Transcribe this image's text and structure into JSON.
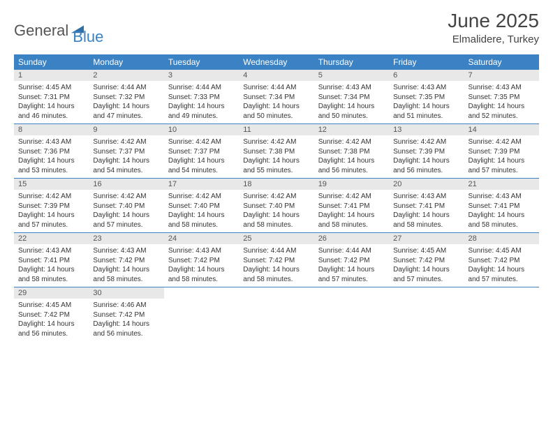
{
  "logo": {
    "text1": "General",
    "text2": "Blue",
    "icon_color": "#2f6fa8"
  },
  "title": "June 2025",
  "location": "Elmalidere, Turkey",
  "colors": {
    "header_bg": "#3b82c4",
    "header_text": "#ffffff",
    "daynum_bg": "#e8e8e8",
    "row_border": "#3b82c4",
    "text": "#333333"
  },
  "day_headers": [
    "Sunday",
    "Monday",
    "Tuesday",
    "Wednesday",
    "Thursday",
    "Friday",
    "Saturday"
  ],
  "weeks": [
    [
      {
        "n": "1",
        "sr": "4:45 AM",
        "ss": "7:31 PM",
        "dl": "14 hours and 46 minutes."
      },
      {
        "n": "2",
        "sr": "4:44 AM",
        "ss": "7:32 PM",
        "dl": "14 hours and 47 minutes."
      },
      {
        "n": "3",
        "sr": "4:44 AM",
        "ss": "7:33 PM",
        "dl": "14 hours and 49 minutes."
      },
      {
        "n": "4",
        "sr": "4:44 AM",
        "ss": "7:34 PM",
        "dl": "14 hours and 50 minutes."
      },
      {
        "n": "5",
        "sr": "4:43 AM",
        "ss": "7:34 PM",
        "dl": "14 hours and 50 minutes."
      },
      {
        "n": "6",
        "sr": "4:43 AM",
        "ss": "7:35 PM",
        "dl": "14 hours and 51 minutes."
      },
      {
        "n": "7",
        "sr": "4:43 AM",
        "ss": "7:35 PM",
        "dl": "14 hours and 52 minutes."
      }
    ],
    [
      {
        "n": "8",
        "sr": "4:43 AM",
        "ss": "7:36 PM",
        "dl": "14 hours and 53 minutes."
      },
      {
        "n": "9",
        "sr": "4:42 AM",
        "ss": "7:37 PM",
        "dl": "14 hours and 54 minutes."
      },
      {
        "n": "10",
        "sr": "4:42 AM",
        "ss": "7:37 PM",
        "dl": "14 hours and 54 minutes."
      },
      {
        "n": "11",
        "sr": "4:42 AM",
        "ss": "7:38 PM",
        "dl": "14 hours and 55 minutes."
      },
      {
        "n": "12",
        "sr": "4:42 AM",
        "ss": "7:38 PM",
        "dl": "14 hours and 56 minutes."
      },
      {
        "n": "13",
        "sr": "4:42 AM",
        "ss": "7:39 PM",
        "dl": "14 hours and 56 minutes."
      },
      {
        "n": "14",
        "sr": "4:42 AM",
        "ss": "7:39 PM",
        "dl": "14 hours and 57 minutes."
      }
    ],
    [
      {
        "n": "15",
        "sr": "4:42 AM",
        "ss": "7:39 PM",
        "dl": "14 hours and 57 minutes."
      },
      {
        "n": "16",
        "sr": "4:42 AM",
        "ss": "7:40 PM",
        "dl": "14 hours and 57 minutes."
      },
      {
        "n": "17",
        "sr": "4:42 AM",
        "ss": "7:40 PM",
        "dl": "14 hours and 58 minutes."
      },
      {
        "n": "18",
        "sr": "4:42 AM",
        "ss": "7:40 PM",
        "dl": "14 hours and 58 minutes."
      },
      {
        "n": "19",
        "sr": "4:42 AM",
        "ss": "7:41 PM",
        "dl": "14 hours and 58 minutes."
      },
      {
        "n": "20",
        "sr": "4:43 AM",
        "ss": "7:41 PM",
        "dl": "14 hours and 58 minutes."
      },
      {
        "n": "21",
        "sr": "4:43 AM",
        "ss": "7:41 PM",
        "dl": "14 hours and 58 minutes."
      }
    ],
    [
      {
        "n": "22",
        "sr": "4:43 AM",
        "ss": "7:41 PM",
        "dl": "14 hours and 58 minutes."
      },
      {
        "n": "23",
        "sr": "4:43 AM",
        "ss": "7:42 PM",
        "dl": "14 hours and 58 minutes."
      },
      {
        "n": "24",
        "sr": "4:43 AM",
        "ss": "7:42 PM",
        "dl": "14 hours and 58 minutes."
      },
      {
        "n": "25",
        "sr": "4:44 AM",
        "ss": "7:42 PM",
        "dl": "14 hours and 58 minutes."
      },
      {
        "n": "26",
        "sr": "4:44 AM",
        "ss": "7:42 PM",
        "dl": "14 hours and 57 minutes."
      },
      {
        "n": "27",
        "sr": "4:45 AM",
        "ss": "7:42 PM",
        "dl": "14 hours and 57 minutes."
      },
      {
        "n": "28",
        "sr": "4:45 AM",
        "ss": "7:42 PM",
        "dl": "14 hours and 57 minutes."
      }
    ],
    [
      {
        "n": "29",
        "sr": "4:45 AM",
        "ss": "7:42 PM",
        "dl": "14 hours and 56 minutes."
      },
      {
        "n": "30",
        "sr": "4:46 AM",
        "ss": "7:42 PM",
        "dl": "14 hours and 56 minutes."
      },
      null,
      null,
      null,
      null,
      null
    ]
  ],
  "labels": {
    "sunrise": "Sunrise: ",
    "sunset": "Sunset: ",
    "daylight": "Daylight: "
  }
}
